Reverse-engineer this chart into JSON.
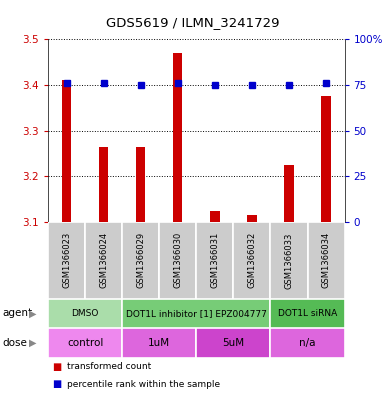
{
  "title": "GDS5619 / ILMN_3241729",
  "samples": [
    "GSM1366023",
    "GSM1366024",
    "GSM1366029",
    "GSM1366030",
    "GSM1366031",
    "GSM1366032",
    "GSM1366033",
    "GSM1366034"
  ],
  "bar_values": [
    3.41,
    3.265,
    3.265,
    3.47,
    3.125,
    3.115,
    3.225,
    3.375
  ],
  "percentile_vals": [
    76,
    76,
    75,
    76,
    75,
    75,
    75,
    76
  ],
  "ylim_left": [
    3.1,
    3.5
  ],
  "ylim_right": [
    0,
    100
  ],
  "yticks_left": [
    3.1,
    3.2,
    3.3,
    3.4,
    3.5
  ],
  "yticks_right": [
    0,
    25,
    50,
    75,
    100
  ],
  "bar_color": "#cc0000",
  "dot_color": "#0000cc",
  "agent_groups": [
    {
      "label": "DMSO",
      "start": 0,
      "end": 2,
      "color": "#aaddaa"
    },
    {
      "label": "DOT1L inhibitor [1] EPZ004777",
      "start": 2,
      "end": 6,
      "color": "#77cc77"
    },
    {
      "label": "DOT1L siRNA",
      "start": 6,
      "end": 8,
      "color": "#55bb55"
    }
  ],
  "dose_groups": [
    {
      "label": "control",
      "start": 0,
      "end": 2,
      "color": "#ee88ee"
    },
    {
      "label": "1uM",
      "start": 2,
      "end": 4,
      "color": "#dd66dd"
    },
    {
      "label": "5uM",
      "start": 4,
      "end": 6,
      "color": "#cc44cc"
    },
    {
      "label": "n/a",
      "start": 6,
      "end": 8,
      "color": "#dd66dd"
    }
  ],
  "legend_items": [
    {
      "label": "transformed count",
      "color": "#cc0000"
    },
    {
      "label": "percentile rank within the sample",
      "color": "#0000cc"
    }
  ],
  "sample_box_color": "#cccccc",
  "bar_width": 0.25
}
